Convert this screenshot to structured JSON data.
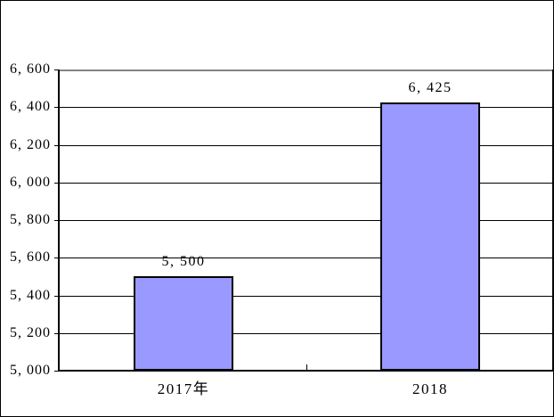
{
  "chart_data": {
    "type": "bar",
    "title": "",
    "categories": [
      "2017年",
      "2018"
    ],
    "values": [
      5500,
      6425
    ],
    "value_labels": [
      "5, 500",
      "6, 425"
    ],
    "ylim": [
      5000,
      6600
    ],
    "ytick_step": 200,
    "yticks": [
      5000,
      5200,
      5400,
      5600,
      5800,
      6000,
      6200,
      6400,
      6600
    ],
    "ytick_labels": [
      "5, 000",
      "5, 200",
      "5, 400",
      "5, 600",
      "5, 800",
      "6, 000",
      "6, 200",
      "6, 400",
      "6, 600"
    ],
    "grid": true,
    "legend": "none",
    "bar_color": "#9999FF",
    "bar_border_color": "#000000",
    "gridline_color": "#000000",
    "axis_color": "#000000",
    "plot_top_border_color": "#848484",
    "background_color": "#FFFFFF"
  }
}
